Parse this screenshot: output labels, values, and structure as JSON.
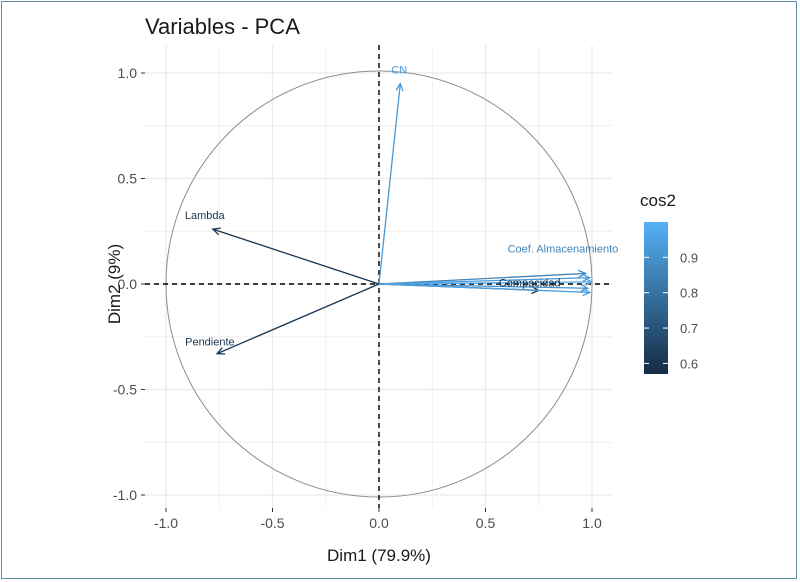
{
  "chart_data": {
    "type": "scatter",
    "subtype": "pca-variable-correlation-circle",
    "title": "Variables - PCA",
    "xlabel": "Dim1 (79.9%)",
    "ylabel": "Dim2 (9%)",
    "xlim": [
      -1.1,
      1.1
    ],
    "ylim": [
      -1.05,
      1.05
    ],
    "xticks": [
      -1.0,
      -0.5,
      0.0,
      0.5,
      1.0
    ],
    "xtick_labels": [
      "-1.0",
      "-0.5",
      "0.0",
      "0.5",
      "1.0"
    ],
    "yticks": [
      -1.0,
      -0.5,
      0.0,
      0.5,
      1.0
    ],
    "yticks_labels": [
      "-1.0",
      "-0.5",
      "0.0",
      "0.5",
      "1.0"
    ],
    "grid": true,
    "unit_circle": true,
    "variables": [
      {
        "label": "CN",
        "x": 0.1,
        "y": 0.95,
        "cos2": 0.92
      },
      {
        "label": "Lambda",
        "x": -0.78,
        "y": 0.26,
        "cos2": 0.6
      },
      {
        "label": "Pendiente",
        "x": -0.76,
        "y": -0.33,
        "cos2": 0.61
      },
      {
        "label": "Compacidad",
        "x": 0.75,
        "y": -0.03,
        "cos2": 0.57
      },
      {
        "label": "Coef. Almacenamiento",
        "x": 0.97,
        "y": 0.05,
        "cos2": 0.86
      },
      {
        "label": "",
        "x": 0.99,
        "y": 0.03,
        "cos2": 0.94
      },
      {
        "label": "",
        "x": 1.0,
        "y": 0.01,
        "cos2": 0.97
      },
      {
        "label": "",
        "x": 0.98,
        "y": -0.02,
        "cos2": 0.9
      },
      {
        "label": "",
        "x": 0.99,
        "y": -0.04,
        "cos2": 0.95
      }
    ],
    "legend": {
      "title": "cos2",
      "min": 0.57,
      "max": 1.0,
      "ticks": [
        0.6,
        0.7,
        0.8,
        0.9
      ],
      "tick_labels": [
        "0.6",
        "0.7",
        "0.8",
        "0.9"
      ],
      "color_low": "#132b43",
      "color_high": "#56b1f7",
      "position": "right"
    }
  }
}
